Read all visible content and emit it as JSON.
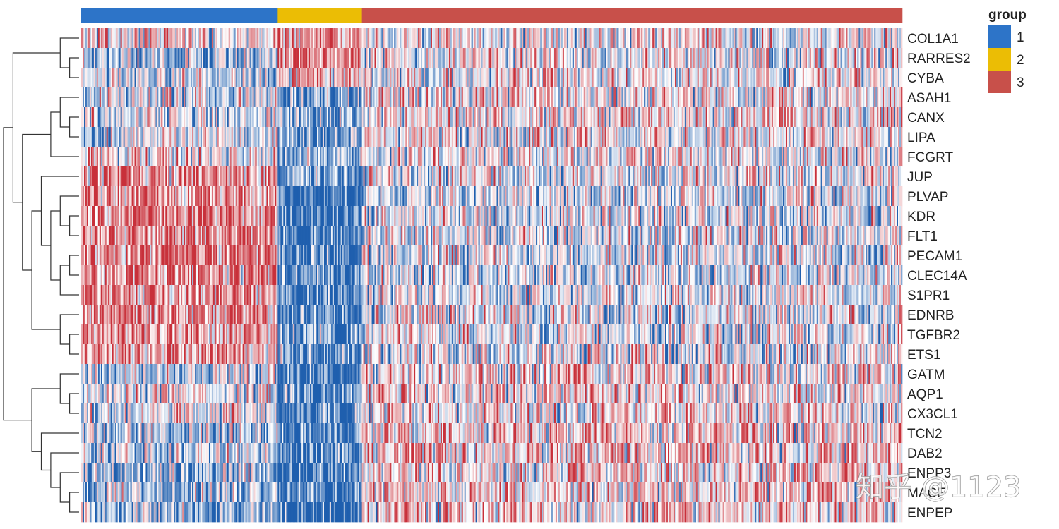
{
  "chart_data": {
    "type": "heatmap",
    "title": "",
    "xlabel": "",
    "ylabel": "",
    "rows": [
      "COL1A1",
      "RARRES2",
      "CYBA",
      "ASAH1",
      "CANX",
      "LIPA",
      "FCGRT",
      "JUP",
      "PLVAP",
      "KDR",
      "FLT1",
      "PECAM1",
      "CLEC14A",
      "S1PR1",
      "EDNRB",
      "TGFBR2",
      "ETS1",
      "GATM",
      "AQP1",
      "CX3CL1",
      "TCN2",
      "DAB2",
      "ENPP3",
      "MACF",
      "ENPEP"
    ],
    "column_groups": [
      {
        "group": "1",
        "n_columns": 140,
        "color": "#2d74c8"
      },
      {
        "group": "2",
        "n_columns": 60,
        "color": "#ebbd05"
      },
      {
        "group": "3",
        "n_columns": 385,
        "color": "#c8504a"
      }
    ],
    "group_mean_z": {
      "COL1A1": [
        0.15,
        0.55,
        0.0
      ],
      "RARRES2": [
        -0.35,
        0.65,
        0.05
      ],
      "CYBA": [
        -0.25,
        0.35,
        0.0
      ],
      "ASAH1": [
        -0.15,
        -0.65,
        0.05
      ],
      "CANX": [
        -0.2,
        -0.55,
        0.1
      ],
      "LIPA": [
        -0.15,
        -0.6,
        0.05
      ],
      "FCGRT": [
        0.1,
        -0.45,
        0.0
      ],
      "JUP": [
        0.55,
        -0.5,
        -0.05
      ],
      "PLVAP": [
        0.6,
        -0.95,
        -0.1
      ],
      "KDR": [
        0.6,
        -0.95,
        -0.1
      ],
      "FLT1": [
        0.55,
        -0.9,
        -0.1
      ],
      "PECAM1": [
        0.6,
        -0.9,
        -0.15
      ],
      "CLEC14A": [
        0.6,
        -0.9,
        -0.15
      ],
      "S1PR1": [
        0.55,
        -0.85,
        -0.1
      ],
      "EDNRB": [
        0.55,
        -0.85,
        -0.05
      ],
      "TGFBR2": [
        0.55,
        -0.8,
        -0.05
      ],
      "ETS1": [
        0.5,
        -0.8,
        -0.05
      ],
      "GATM": [
        -0.3,
        -0.9,
        0.15
      ],
      "AQP1": [
        0.05,
        -0.85,
        0.1
      ],
      "CX3CL1": [
        0.0,
        -0.8,
        0.1
      ],
      "TCN2": [
        -0.35,
        -0.8,
        0.25
      ],
      "DAB2": [
        -0.3,
        -0.85,
        0.25
      ],
      "ENPP3": [
        -0.45,
        -0.95,
        0.2
      ],
      "MACF": [
        -0.4,
        -0.95,
        0.2
      ],
      "ENPEP": [
        -0.4,
        -0.95,
        0.2
      ]
    },
    "color_scale": {
      "low": "#1f5fae",
      "mid": "#ffffff",
      "high": "#c8303a"
    },
    "legend": {
      "title": "group",
      "position": "top-right",
      "entries": [
        {
          "label": "1",
          "color": "#2d74c8"
        },
        {
          "label": "2",
          "color": "#ebbd05"
        },
        {
          "label": "3",
          "color": "#c8504a"
        }
      ]
    },
    "row_dendrogram": "left",
    "grid": false
  },
  "watermark": {
    "text": "知乎 @1123"
  }
}
